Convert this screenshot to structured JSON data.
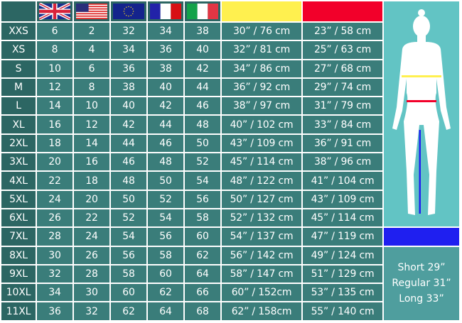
{
  "headers": {
    "flags": [
      "uk-flag",
      "us-flag",
      "eu-flag",
      "fr-flag",
      "it-flag"
    ],
    "chest_color": "#fff04f",
    "waist_color": "#f2002a",
    "inseam_color": "#1f1ff0"
  },
  "rows": [
    [
      "XXS",
      "6",
      "2",
      "32",
      "34",
      "38",
      "30” / 76 cm",
      "23” / 58 cm"
    ],
    [
      "XS",
      "8",
      "4",
      "34",
      "36",
      "40",
      "32” / 81 cm",
      "25” / 63 cm"
    ],
    [
      "S",
      "10",
      "6",
      "36",
      "38",
      "42",
      "34” / 86 cm",
      "27” / 68 cm"
    ],
    [
      "M",
      "12",
      "8",
      "38",
      "40",
      "44",
      "36” / 92 cm",
      "29” / 74 cm"
    ],
    [
      "L",
      "14",
      "10",
      "40",
      "42",
      "46",
      "38” / 97 cm",
      "31” / 79 cm"
    ],
    [
      "XL",
      "16",
      "12",
      "42",
      "44",
      "48",
      "40” / 102 cm",
      "33” / 84 cm"
    ],
    [
      "2XL",
      "18",
      "14",
      "44",
      "46",
      "50",
      "43” / 109 cm",
      "36” / 91 cm"
    ],
    [
      "3XL",
      "20",
      "16",
      "46",
      "48",
      "52",
      "45” / 114 cm",
      "38” / 96 cm"
    ],
    [
      "4XL",
      "22",
      "18",
      "48",
      "50",
      "54",
      "48” / 122 cm",
      "41” / 104 cm"
    ],
    [
      "5XL",
      "24",
      "20",
      "50",
      "52",
      "56",
      "50” / 127 cm",
      "43” / 109 cm"
    ],
    [
      "6XL",
      "26",
      "22",
      "52",
      "54",
      "58",
      "52” / 132 cm",
      "45” / 114 cm"
    ],
    [
      "7XL",
      "28",
      "24",
      "54",
      "56",
      "60",
      "54” / 137 cm",
      "47” / 119 cm"
    ],
    [
      "8XL",
      "30",
      "26",
      "56",
      "58",
      "62",
      "56” / 142 cm",
      "49” / 124 cm"
    ],
    [
      "9XL",
      "32",
      "28",
      "58",
      "60",
      "64",
      "58” / 147 cm",
      "51” / 129 cm"
    ],
    [
      "10XL",
      "34",
      "30",
      "60",
      "62",
      "66",
      "60” / 152cm",
      "53” / 135 cm"
    ],
    [
      "11XL",
      "36",
      "32",
      "62",
      "64",
      "68",
      "62” / 158cm",
      "55” / 140 cm"
    ]
  ],
  "inseam": {
    "lines": [
      "Short 29”",
      "Regular 31”",
      "Long 33”"
    ]
  }
}
